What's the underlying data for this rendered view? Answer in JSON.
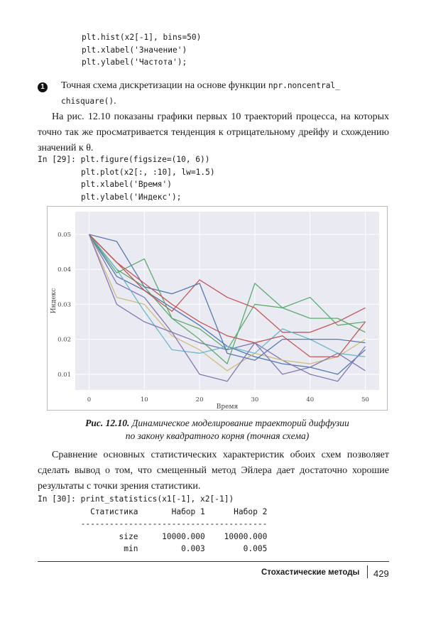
{
  "code_top": [
    "plt.hist(x2[-1], bins=50)",
    "plt.xlabel('Значение')",
    "plt.ylabel('Частота');"
  ],
  "note": {
    "number": "1",
    "text_1": "Точная схема дискретизации на основе функции ",
    "code": "npr.noncentral_",
    "code_2": "chisquare()",
    "text_2": "."
  },
  "paragraph_1": "На рис. 12.10 показаны графики первых 10 траекторий процесса, на которых точно так же просматривается тенденция к отрицательному дрейфу и схождению значений к θ.",
  "code_29": {
    "prompt": "In [29]:",
    "lines": [
      "plt.figure(figsize=(10, 6))",
      "plt.plot(x2[:, :10], lw=1.5)",
      "plt.xlabel('Время')",
      "plt.ylabel('Индекс');"
    ]
  },
  "chart_data": {
    "type": "line",
    "xlabel": "Время",
    "ylabel": "Индекс",
    "xlim": [
      -2.5,
      52.5
    ],
    "ylim": [
      0.0055,
      0.0565
    ],
    "xticks": [
      "0",
      "10",
      "20",
      "30",
      "40",
      "50"
    ],
    "yticks": [
      "0.01",
      "0.02",
      "0.03",
      "0.04",
      "0.05"
    ],
    "grid": true,
    "background": "#EAEAF2",
    "x": [
      0,
      5,
      10,
      15,
      20,
      25,
      30,
      35,
      40,
      45,
      50
    ],
    "series": [
      {
        "color": "#4C72B0",
        "values": [
          0.05,
          0.038,
          0.034,
          0.029,
          0.024,
          0.018,
          0.015,
          0.013,
          0.012,
          0.01,
          0.017
        ]
      },
      {
        "color": "#55A868",
        "values": [
          0.05,
          0.04,
          0.035,
          0.026,
          0.023,
          0.017,
          0.03,
          0.029,
          0.032,
          0.024,
          0.025
        ]
      },
      {
        "color": "#C44E52",
        "values": [
          0.05,
          0.042,
          0.034,
          0.028,
          0.037,
          0.032,
          0.029,
          0.022,
          0.022,
          0.025,
          0.029
        ]
      },
      {
        "color": "#8172B2",
        "values": [
          0.05,
          0.036,
          0.032,
          0.022,
          0.019,
          0.017,
          0.019,
          0.014,
          0.01,
          0.008,
          0.018
        ]
      },
      {
        "color": "#CCB974",
        "values": [
          0.05,
          0.032,
          0.03,
          0.021,
          0.017,
          0.011,
          0.016,
          0.014,
          0.013,
          0.015,
          0.02
        ]
      },
      {
        "color": "#64B5CD",
        "values": [
          0.05,
          0.04,
          0.028,
          0.017,
          0.016,
          0.018,
          0.016,
          0.023,
          0.02,
          0.016,
          0.015
        ]
      },
      {
        "color": "#4C72B0",
        "values": [
          0.05,
          0.048,
          0.035,
          0.033,
          0.036,
          0.016,
          0.014,
          0.02,
          0.02,
          0.02,
          0.019
        ]
      },
      {
        "color": "#55A868",
        "values": [
          0.05,
          0.039,
          0.043,
          0.026,
          0.02,
          0.013,
          0.036,
          0.029,
          0.026,
          0.026,
          0.022
        ]
      },
      {
        "color": "#C44E52",
        "values": [
          0.05,
          0.042,
          0.036,
          0.03,
          0.025,
          0.021,
          0.019,
          0.021,
          0.015,
          0.015,
          0.025
        ]
      },
      {
        "color": "#8172B2",
        "values": [
          0.05,
          0.03,
          0.025,
          0.022,
          0.01,
          0.008,
          0.019,
          0.01,
          0.012,
          0.016,
          0.011
        ]
      }
    ]
  },
  "caption": {
    "label": "Рис. 12.10.",
    "line_1": " Динамическое моделирование траекторий диффузии",
    "line_2": "по закону квадратного корня (точная схема)"
  },
  "paragraph_2": "Сравнение основных статистических характеристик обоих схем позволяет сделать вывод о том, что смещенный метод Эйлера дает достаточно хорошие результаты с точки зрения статистики.",
  "code_30": {
    "prompt": "In [30]:",
    "call": "print_statistics(x1[-1], x2[-1])",
    "headers": [
      "Статистика",
      "Набор 1",
      "Набор 2"
    ],
    "separator": "---------------------------------------",
    "rows": [
      [
        "size",
        "10000.000",
        "10000.000"
      ],
      [
        "min",
        "0.003",
        "0.005"
      ]
    ]
  },
  "footer": {
    "section": "Стохастические методы",
    "page": "429"
  }
}
